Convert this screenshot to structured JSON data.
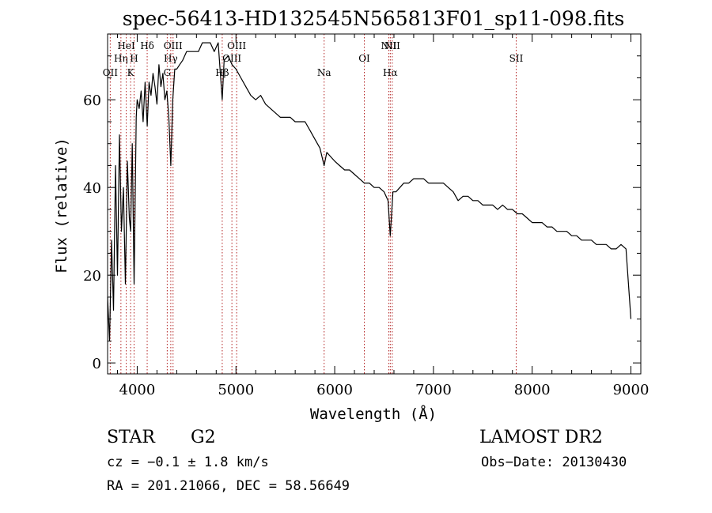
{
  "chart_data": {
    "type": "line",
    "title": "spec-56413-HD132545N565813F01_sp11-098.fits",
    "xlabel": "Wavelength (Å)",
    "ylabel": "Flux (relative)",
    "xlim": [
      3700,
      9100
    ],
    "ylim": [
      -2.5,
      75
    ],
    "xticks": [
      4000,
      5000,
      6000,
      7000,
      8000,
      9000
    ],
    "yticks": [
      0,
      20,
      40,
      60
    ],
    "grid": false,
    "series": [
      {
        "color": "#000000",
        "x": [
          3700,
          3720,
          3740,
          3760,
          3780,
          3800,
          3820,
          3840,
          3860,
          3880,
          3900,
          3920,
          3933,
          3950,
          3968,
          3990,
          4000,
          4020,
          4040,
          4060,
          4080,
          4101,
          4120,
          4140,
          4160,
          4180,
          4200,
          4220,
          4240,
          4260,
          4280,
          4300,
          4320,
          4340,
          4360,
          4380,
          4400,
          4430,
          4460,
          4500,
          4540,
          4580,
          4620,
          4660,
          4700,
          4740,
          4780,
          4820,
          4861,
          4880,
          4920,
          4960,
          5000,
          5050,
          5100,
          5150,
          5200,
          5250,
          5300,
          5350,
          5400,
          5450,
          5500,
          5550,
          5600,
          5650,
          5700,
          5750,
          5800,
          5850,
          5893,
          5920,
          5960,
          6000,
          6050,
          6100,
          6150,
          6200,
          6250,
          6300,
          6350,
          6400,
          6450,
          6500,
          6540,
          6563,
          6590,
          6620,
          6660,
          6700,
          6750,
          6800,
          6850,
          6900,
          6950,
          7000,
          7050,
          7100,
          7150,
          7200,
          7250,
          7300,
          7350,
          7400,
          7450,
          7500,
          7550,
          7600,
          7650,
          7700,
          7750,
          7800,
          7850,
          7900,
          7950,
          8000,
          8050,
          8100,
          8150,
          8200,
          8250,
          8300,
          8350,
          8400,
          8450,
          8500,
          8550,
          8600,
          8650,
          8700,
          8750,
          8800,
          8850,
          8900,
          8950,
          9000
        ],
        "values": [
          15,
          5,
          28,
          12,
          45,
          20,
          52,
          30,
          40,
          18,
          46,
          33,
          30,
          50,
          18,
          56,
          60,
          58,
          62,
          55,
          64,
          54,
          64,
          61,
          66,
          63,
          59,
          68,
          63,
          66,
          60,
          62,
          56,
          45,
          60,
          67,
          67,
          68,
          69,
          71,
          71,
          71,
          71,
          73,
          73,
          73,
          71,
          73,
          60,
          69,
          70,
          68,
          67,
          65,
          63,
          61,
          60,
          61,
          59,
          58,
          57,
          56,
          56,
          56,
          55,
          55,
          55,
          53,
          51,
          49,
          45,
          48,
          47,
          46,
          45,
          44,
          44,
          43,
          42,
          41,
          41,
          40,
          40,
          39,
          37,
          29,
          39,
          39,
          40,
          41,
          41,
          42,
          42,
          42,
          41,
          41,
          41,
          41,
          40,
          39,
          37,
          38,
          38,
          37,
          37,
          36,
          36,
          36,
          35,
          36,
          35,
          35,
          34,
          34,
          33,
          32,
          32,
          32,
          31,
          31,
          30,
          30,
          30,
          29,
          29,
          28,
          28,
          28,
          27,
          27,
          27,
          26,
          26,
          27,
          26,
          10
        ]
      }
    ],
    "line_markers": [
      {
        "label": "OII",
        "wavelength": 3727,
        "row": 3
      },
      {
        "label": "Hη",
        "wavelength": 3835,
        "row": 2
      },
      {
        "label": "HeI",
        "wavelength": 3889,
        "row": 1
      },
      {
        "label": "K",
        "wavelength": 3933,
        "row": 3
      },
      {
        "label": "H",
        "wavelength": 3968,
        "row": 2
      },
      {
        "label": "Hδ",
        "wavelength": 4101,
        "row": 1
      },
      {
        "label": "G",
        "wavelength": 4304,
        "row": 3
      },
      {
        "label": "Hγ",
        "wavelength": 4340,
        "row": 2
      },
      {
        "label": "OIII",
        "wavelength": 4363,
        "row": 1
      },
      {
        "label": "Hβ",
        "wavelength": 4861,
        "row": 3
      },
      {
        "label": "OIII",
        "wavelength": 4959,
        "row": 2
      },
      {
        "label": "OIII",
        "wavelength": 5007,
        "row": 1
      },
      {
        "label": "Na",
        "wavelength": 5893,
        "row": 3
      },
      {
        "label": "OI",
        "wavelength": 6300,
        "row": 2
      },
      {
        "label": "NII",
        "wavelength": 6548,
        "row": 1
      },
      {
        "label": "Hα",
        "wavelength": 6563,
        "row": 3
      },
      {
        "label": "NII",
        "wavelength": 6583,
        "row": 1
      },
      {
        "label": "SII",
        "wavelength": 7838,
        "row": 2
      }
    ]
  },
  "info": {
    "object_class": "STAR",
    "subclass": "G2",
    "survey": "LAMOST DR2",
    "cz": "cz = −0.1 ± 1.8 km/s",
    "obs_date": "Obs−Date: 20130430",
    "coords": "RA = 201.21066, DEC =  58.56649"
  }
}
